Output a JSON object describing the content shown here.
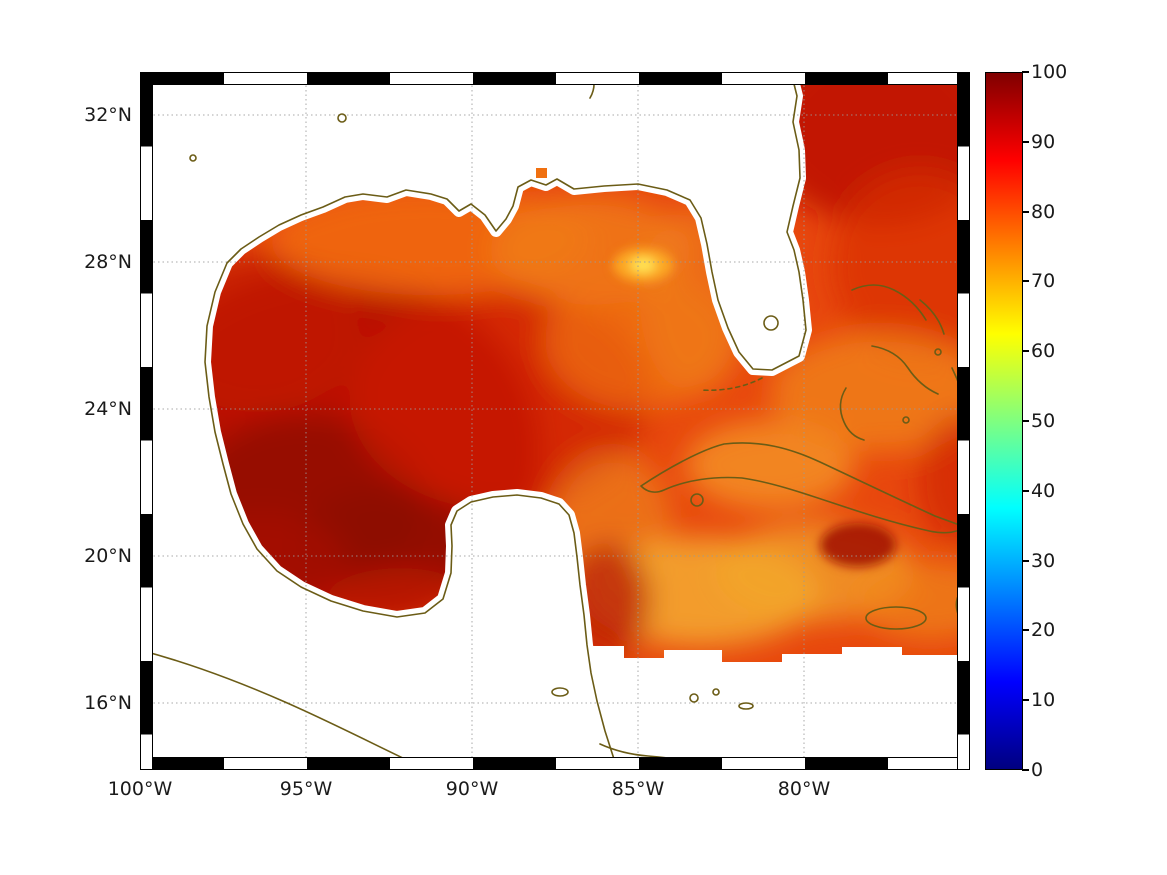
{
  "figure": {
    "background": "#ffffff",
    "title": ""
  },
  "axes": {
    "x_ticks": [
      "100°W",
      "95°W",
      "90°W",
      "85°W",
      "80°W"
    ],
    "y_ticks": [
      "32°N",
      "28°N",
      "24°N",
      "20°N",
      "16°N"
    ]
  },
  "colorbar": {
    "ticks": [
      "100",
      "90",
      "80",
      "70",
      "60",
      "50",
      "40",
      "30",
      "20",
      "10",
      "0"
    ],
    "min": 0,
    "max": 100,
    "colormap": "jet"
  },
  "colors": {
    "coastline": "#6b5c16",
    "land": "#ffffff",
    "frame": "#000000",
    "jet_stops": [
      "#800000",
      "#ff0000",
      "#ffff00",
      "#00ffff",
      "#0000ff",
      "#000080"
    ]
  },
  "chart_data": {
    "type": "heatmap",
    "title": "",
    "xlabel": "",
    "ylabel": "",
    "region": "Gulf of Mexico, western North Atlantic and northwest Caribbean",
    "x_axis": {
      "ticks": [
        "100°W",
        "95°W",
        "90°W",
        "85°W",
        "80°W"
      ],
      "range": [
        "100°W",
        "75°W"
      ]
    },
    "y_axis": {
      "ticks": [
        "32°N",
        "28°N",
        "24°N",
        "20°N",
        "16°N"
      ],
      "range": [
        "14°N",
        "33°N"
      ]
    },
    "colorbar": {
      "min": 0,
      "max": 100,
      "tick_step": 10,
      "colormap": "jet"
    },
    "grid": "dotted graticule every 4 deg latitude, 5 deg longitude",
    "land_masked_white": true,
    "field_summary": [
      {
        "area": "western Gulf of Mexico (97W-92W, 19N-26N)",
        "approx_value": 95
      },
      {
        "area": "deep western Gulf core (95W-92W, 20N-23N)",
        "approx_value": 99
      },
      {
        "area": "northern Gulf shelf (94W-88W, 28N-29.5N)",
        "approx_value": 80
      },
      {
        "area": "eastern Gulf / West Florida shelf",
        "approx_value": 80
      },
      {
        "area": "local minimum spot near 85W, 28N",
        "approx_value": 68
      },
      {
        "area": "Atlantic east of Georgia/Florida (31N-33N)",
        "approx_value": 93
      },
      {
        "area": "Bahamas region",
        "approx_value": 78
      },
      {
        "area": "Straits of Florida / Yucatan Channel",
        "approx_value": 80
      },
      {
        "area": "northwest Caribbean (85W-78W, 18N-21N)",
        "approx_value": 72
      },
      {
        "area": "spot south of central Cuba",
        "approx_value": 97
      }
    ]
  }
}
